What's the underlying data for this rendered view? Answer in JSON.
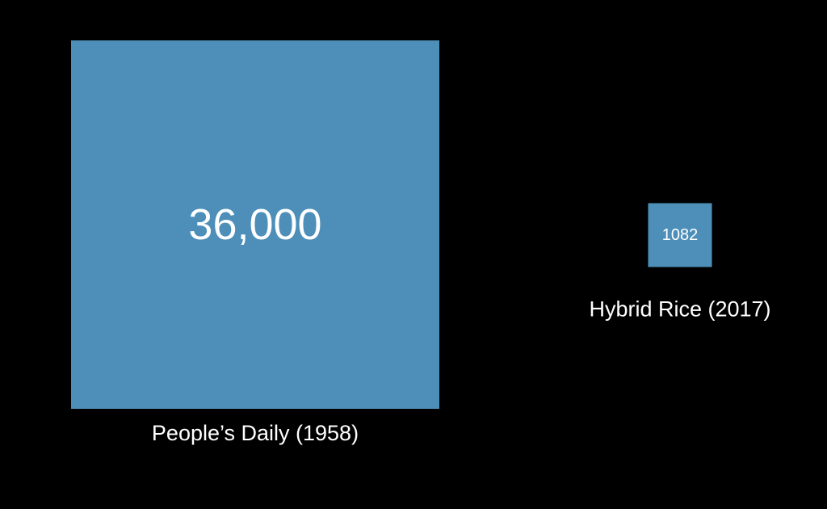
{
  "page": {
    "background": "#000000"
  },
  "chart_data": {
    "type": "proportional-area squares",
    "categories": [
      "People’s Daily (1958)",
      "Hybrid Rice (2017)"
    ],
    "values": [
      36000,
      1082
    ],
    "value_labels": [
      "36,000",
      "1082"
    ],
    "category_labels": [
      "People’s Daily (1958)",
      "Hybrid Rice (2017)"
    ],
    "title": "",
    "xlabel": "",
    "ylabel": "",
    "legend": "none",
    "grid": false,
    "colors": {
      "square_fill": "#4d8fb8",
      "text": "#ffffff"
    }
  }
}
